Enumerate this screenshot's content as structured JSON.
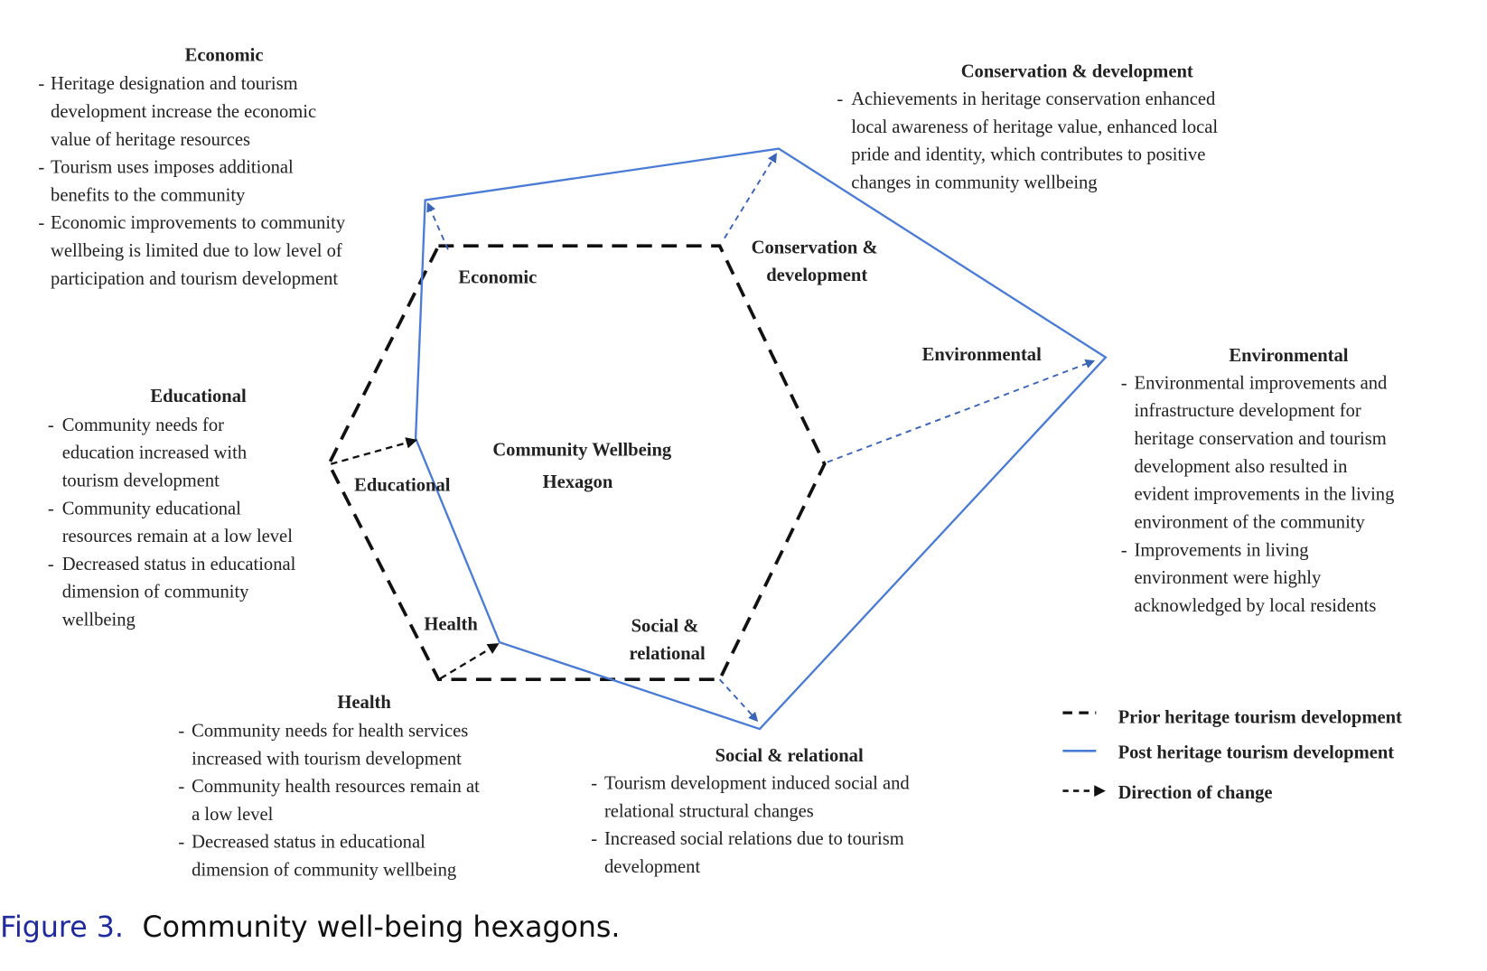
{
  "colors": {
    "prior": "#111111",
    "post": "#4a7bd6",
    "caption_label": "#1f2a9c"
  },
  "center_label": [
    "Community Wellbeing",
    "Hexagon"
  ],
  "vertex_labels": {
    "economic": [
      "Economic"
    ],
    "conservation": [
      "Conservation &",
      "development"
    ],
    "environmental": [
      "Environmental"
    ],
    "educational": [
      "Educational"
    ],
    "health": [
      "Health"
    ],
    "social": [
      "Social &",
      "relational"
    ]
  },
  "blocks": [
    {
      "id": "economic",
      "heading": "Economic",
      "items": [
        [
          "Heritage designation and tourism",
          "development increase the economic",
          "value of heritage resources"
        ],
        [
          "Tourism uses imposes additional",
          "benefits to the community"
        ],
        [
          "Economic improvements to community",
          "wellbeing is limited due to low level of",
          "participation and tourism development"
        ]
      ]
    },
    {
      "id": "conservation",
      "heading": "Conservation & development",
      "items": [
        [
          "Achievements in heritage conservation enhanced",
          "local awareness of heritage value, enhanced local",
          "pride and identity, which contributes to positive",
          "changes in community wellbeing"
        ]
      ]
    },
    {
      "id": "environmental",
      "heading": "Environmental",
      "items": [
        [
          "Environmental improvements and",
          "infrastructure development for",
          "heritage conservation and tourism",
          "development also resulted in",
          "evident improvements in the living",
          "environment of the community"
        ],
        [
          "Improvements in living",
          "environment were highly",
          "acknowledged by local residents"
        ]
      ]
    },
    {
      "id": "educational",
      "heading": "Educational",
      "items": [
        [
          "Community needs for",
          "education increased with",
          "tourism development"
        ],
        [
          "Community educational",
          "resources remain at a low level"
        ],
        [
          "Decreased status in educational",
          "dimension of community",
          "wellbeing"
        ]
      ]
    },
    {
      "id": "health",
      "heading": "Health",
      "items": [
        [
          "Community needs for health services",
          "increased with tourism development"
        ],
        [
          "Community health resources remain at",
          "a low level"
        ],
        [
          "Decreased status in educational",
          "dimension of community wellbeing"
        ]
      ]
    },
    {
      "id": "social",
      "heading": "Social & relational",
      "items": [
        [
          "Tourism development induced social and",
          "relational structural changes"
        ],
        [
          "Increased social relations due to tourism",
          "development"
        ]
      ]
    }
  ],
  "legend": [
    "Prior heritage tourism development",
    "Post heritage tourism development",
    "Direction of change"
  ],
  "caption": {
    "label": "Figure 3.",
    "text": "Community well-being hexagons."
  }
}
